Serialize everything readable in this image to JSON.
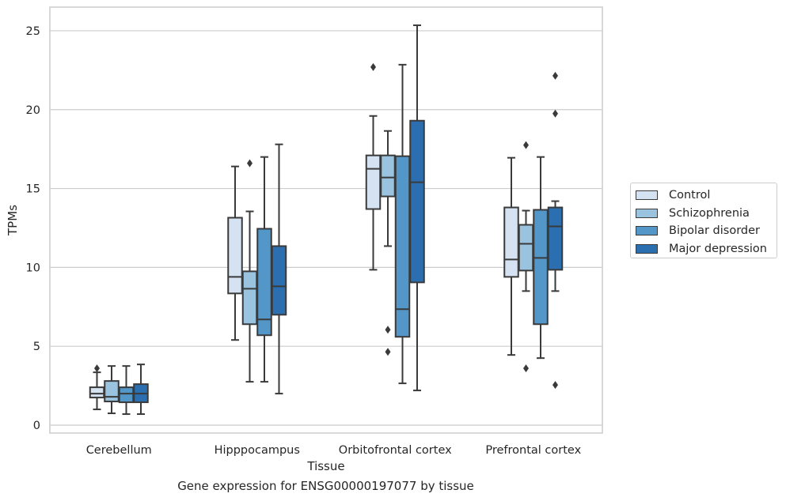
{
  "caption": "Gene expression for ENSG00000197077 by tissue",
  "chart_data": {
    "type": "box",
    "xlabel": "Tissue",
    "ylabel": "TPMs",
    "ylim": [
      -0.5,
      26.5
    ],
    "yticks": [
      0,
      5,
      10,
      15,
      20,
      25
    ],
    "grid": true,
    "legend_position": "right",
    "categories": [
      "Cerebellum",
      "Hipppocampus",
      "Orbitofrontal cortex",
      "Prefrontal cortex"
    ],
    "series": [
      {
        "name": "Control",
        "color": "#d4e2f1",
        "boxes": [
          {
            "whislo": 1.0,
            "q1": 1.75,
            "med": 2.0,
            "q3": 2.4,
            "whishi": 3.35,
            "fliers": [
              3.6
            ]
          },
          {
            "whislo": 5.4,
            "q1": 8.35,
            "med": 9.4,
            "q3": 13.15,
            "whishi": 16.4,
            "fliers": []
          },
          {
            "whislo": 9.85,
            "q1": 13.7,
            "med": 16.25,
            "q3": 17.1,
            "whishi": 19.6,
            "fliers": [
              22.7
            ]
          },
          {
            "whislo": 4.45,
            "q1": 9.4,
            "med": 10.5,
            "q3": 13.8,
            "whishi": 16.95,
            "fliers": []
          }
        ]
      },
      {
        "name": "Schizophrenia",
        "color": "#99c3de",
        "boxes": [
          {
            "whislo": 0.75,
            "q1": 1.5,
            "med": 1.8,
            "q3": 2.8,
            "whishi": 3.75,
            "fliers": []
          },
          {
            "whislo": 2.75,
            "q1": 6.4,
            "med": 8.65,
            "q3": 9.75,
            "whishi": 13.55,
            "fliers": [
              16.6
            ]
          },
          {
            "whislo": 11.35,
            "q1": 14.5,
            "med": 15.7,
            "q3": 17.1,
            "whishi": 18.65,
            "fliers": [
              6.05,
              4.65
            ]
          },
          {
            "whislo": 8.5,
            "q1": 9.8,
            "med": 11.5,
            "q3": 12.7,
            "whishi": 13.6,
            "fliers": [
              17.75,
              3.6
            ]
          }
        ]
      },
      {
        "name": "Bipolar disorder",
        "color": "#5397c8",
        "boxes": [
          {
            "whislo": 0.7,
            "q1": 1.45,
            "med": 2.0,
            "q3": 2.4,
            "whishi": 3.75,
            "fliers": []
          },
          {
            "whislo": 2.75,
            "q1": 5.7,
            "med": 6.7,
            "q3": 12.45,
            "whishi": 17.0,
            "fliers": []
          },
          {
            "whislo": 2.65,
            "q1": 5.6,
            "med": 7.35,
            "q3": 17.05,
            "whishi": 22.85,
            "fliers": []
          },
          {
            "whislo": 4.25,
            "q1": 6.4,
            "med": 10.6,
            "q3": 13.65,
            "whishi": 17.0,
            "fliers": []
          }
        ]
      },
      {
        "name": "Major depression",
        "color": "#2b6fb0",
        "boxes": [
          {
            "whislo": 0.7,
            "q1": 1.45,
            "med": 2.0,
            "q3": 2.6,
            "whishi": 3.85,
            "fliers": []
          },
          {
            "whislo": 2.0,
            "q1": 7.0,
            "med": 8.8,
            "q3": 11.35,
            "whishi": 17.8,
            "fliers": []
          },
          {
            "whislo": 2.2,
            "q1": 9.05,
            "med": 15.4,
            "q3": 19.3,
            "whishi": 25.35,
            "fliers": []
          },
          {
            "whislo": 8.5,
            "q1": 9.85,
            "med": 12.6,
            "q3": 13.8,
            "whishi": 14.2,
            "fliers": [
              22.15,
              19.75,
              2.55
            ]
          }
        ]
      }
    ]
  }
}
